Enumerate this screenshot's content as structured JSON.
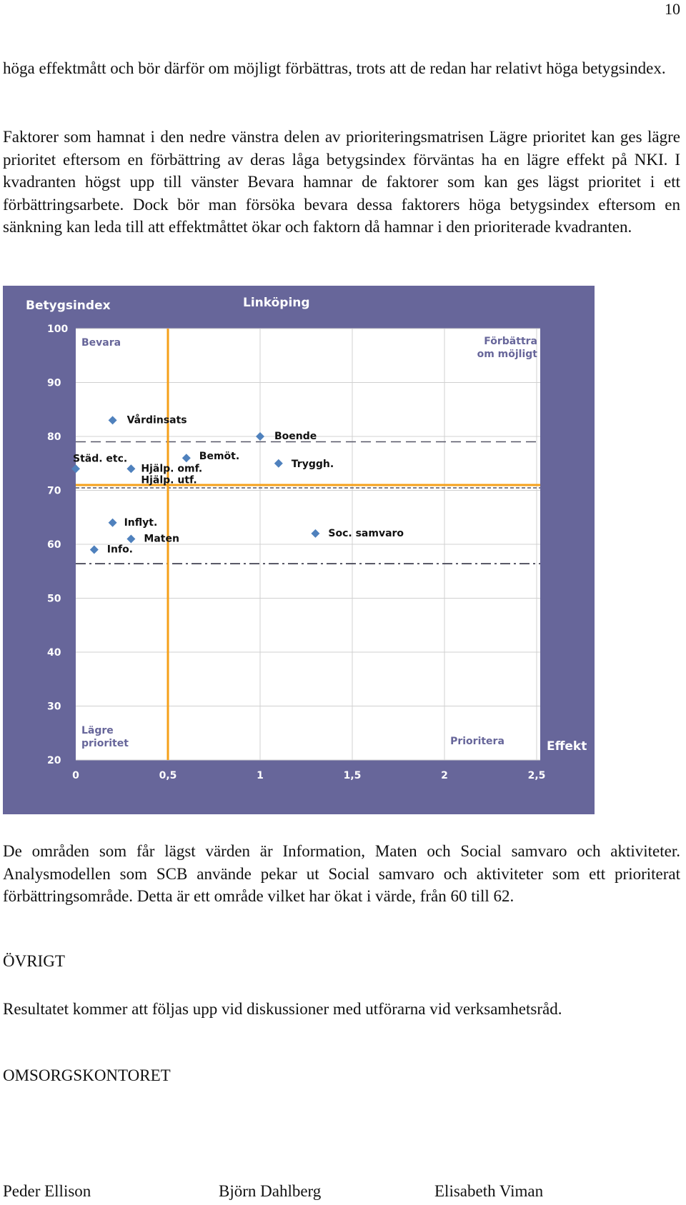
{
  "page_number": "10",
  "paragraphs": {
    "p1": "höga effektmått och bör därför om möjligt förbättras, trots att de redan har relativt höga betygsindex.",
    "p2": "Faktorer som hamnat i den nedre vänstra delen av prioriteringsmatrisen Lägre prioritet kan ges lägre prioritet eftersom en förbättring av deras låga betygsindex förväntas ha en lägre effekt på NKI. I kvadranten högst upp till vänster Bevara hamnar de faktorer som kan ges lägst prioritet i ett förbättringsarbete. Dock bör man försöka bevara dessa faktorers höga betygsindex eftersom en sänkning kan leda till att effektmåttet ökar och faktorn då hamnar i den prioriterade kvadranten.",
    "p3": "De områden som får lägst värden är Information, Maten och Social samvaro och aktiviteter. Analysmodellen som SCB använde pekar ut Social samvaro och aktiviteter som ett prioriterat förbättringsområde. Detta är ett område vilket har ökat i värde, från 60 till 62.",
    "heading_ovrigt": "ÖVRIGT",
    "p4": "Resultatet kommer att följas upp vid diskussioner med utförarna vid verksamhetsråd.",
    "office": "OMSORGSKONTORET"
  },
  "signatures": [
    "Peder Ellison",
    "Björn Dahlberg",
    "Elisabeth Viman"
  ],
  "chart_data": {
    "type": "scatter",
    "title": "Linköping",
    "ylabel": "Betygsindex",
    "xlabel": "Effekt",
    "xlim": [
      0,
      2.5
    ],
    "ylim": [
      20,
      100
    ],
    "x_ticks": [
      "0",
      "0,5",
      "1",
      "1,5",
      "2",
      "2,5"
    ],
    "y_ticks": [
      "100",
      "90",
      "80",
      "70",
      "60",
      "50",
      "40",
      "30",
      "20"
    ],
    "quadrant_labels": {
      "top_left": "Bevara",
      "top_right": [
        "Förbättra",
        "om möjligt"
      ],
      "bottom_left": [
        "Lägre",
        "prioritet"
      ],
      "bottom_right": "Prioritera"
    },
    "reference_lines": {
      "vertical_x": 0.5,
      "horizontal_y": 71
    },
    "dashed_lines_y": [
      79,
      71
    ],
    "dashdot_line_y": 56,
    "points": [
      {
        "label": "Vårdinsats",
        "x": 0.2,
        "y": 83
      },
      {
        "label": "Boende",
        "x": 1.0,
        "y": 80
      },
      {
        "label": "Städ. etc.",
        "x": 0.0,
        "y": 74
      },
      {
        "label": "Hjälp. omf.",
        "x": 0.3,
        "y": 74
      },
      {
        "label": "Hjälp. utf.",
        "x": 0.3,
        "y": 74
      },
      {
        "label": "Bemöt.",
        "x": 0.6,
        "y": 76
      },
      {
        "label": "Tryggh.",
        "x": 1.1,
        "y": 75
      },
      {
        "label": "Inflyt.",
        "x": 0.2,
        "y": 64
      },
      {
        "label": "Maten",
        "x": 0.3,
        "y": 61
      },
      {
        "label": "Info.",
        "x": 0.1,
        "y": 59
      },
      {
        "label": "Soc. samvaro",
        "x": 1.3,
        "y": 62
      }
    ]
  }
}
